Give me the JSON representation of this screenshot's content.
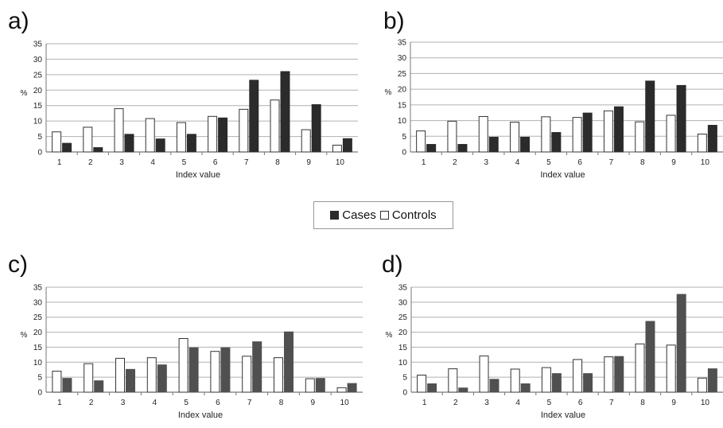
{
  "legend": {
    "cases_label": "Cases",
    "controls_label": "Controls"
  },
  "colors": {
    "cases_dark": "#2b2b2b",
    "cases_grey": "#505050",
    "controls": "#ffffff",
    "grid": "#b0b0b0"
  },
  "chart_data": [
    {
      "panel": "a)",
      "type": "bar",
      "categories": [
        "1",
        "2",
        "3",
        "4",
        "5",
        "6",
        "7",
        "8",
        "9",
        "10"
      ],
      "series": [
        {
          "name": "Controls",
          "values": [
            6.5,
            8.0,
            14.0,
            10.8,
            9.5,
            11.5,
            13.8,
            16.8,
            7.2,
            2.2
          ]
        },
        {
          "name": "Cases",
          "values": [
            2.8,
            1.4,
            5.7,
            4.2,
            5.7,
            11.0,
            23.2,
            26.0,
            15.3,
            4.3
          ]
        }
      ],
      "xlabel": "Index value",
      "ylabel": "%",
      "ylim": [
        0,
        35
      ],
      "yticks": [
        "0",
        "5",
        "10",
        "15",
        "20",
        "25",
        "30",
        "35"
      ],
      "grid": true
    },
    {
      "panel": "b)",
      "type": "bar",
      "categories": [
        "1",
        "2",
        "3",
        "4",
        "5",
        "6",
        "7",
        "8",
        "9",
        "10"
      ],
      "series": [
        {
          "name": "Controls",
          "values": [
            6.7,
            9.8,
            11.3,
            9.5,
            11.2,
            11.0,
            13.1,
            9.6,
            11.7,
            5.7
          ]
        },
        {
          "name": "Cases",
          "values": [
            2.4,
            2.4,
            4.7,
            4.7,
            6.2,
            12.4,
            14.4,
            22.6,
            21.2,
            8.5
          ]
        }
      ],
      "xlabel": "Index value",
      "ylabel": "%",
      "ylim": [
        0,
        35
      ],
      "yticks": [
        "0",
        "5",
        "10",
        "15",
        "20",
        "25",
        "30",
        "35"
      ],
      "grid": true
    },
    {
      "panel": "c)",
      "type": "bar",
      "categories": [
        "1",
        "2",
        "3",
        "4",
        "5",
        "6",
        "7",
        "8",
        "9",
        "10"
      ],
      "series": [
        {
          "name": "Controls",
          "values": [
            7.0,
            9.5,
            11.3,
            11.5,
            17.9,
            13.6,
            12.0,
            11.5,
            4.5,
            1.5
          ]
        },
        {
          "name": "Cases",
          "values": [
            4.6,
            3.8,
            7.6,
            9.1,
            14.8,
            14.8,
            16.8,
            20.1,
            4.6,
            2.9
          ]
        }
      ],
      "xlabel": "Index value",
      "ylabel": "%",
      "ylim": [
        0,
        35
      ],
      "yticks": [
        "0",
        "5",
        "10",
        "15",
        "20",
        "25",
        "30",
        "35"
      ],
      "grid": true
    },
    {
      "panel": "d)",
      "type": "bar",
      "categories": [
        "1",
        "2",
        "3",
        "4",
        "5",
        "6",
        "7",
        "8",
        "9",
        "10"
      ],
      "series": [
        {
          "name": "Controls",
          "values": [
            5.7,
            7.8,
            12.1,
            7.7,
            8.2,
            10.9,
            11.8,
            16.1,
            15.7,
            4.7
          ]
        },
        {
          "name": "Cases",
          "values": [
            2.8,
            1.4,
            4.3,
            2.8,
            6.2,
            6.2,
            11.9,
            23.6,
            32.6,
            7.8
          ]
        }
      ],
      "xlabel": "Index value",
      "ylabel": "%",
      "ylim": [
        0,
        35
      ],
      "yticks": [
        "0",
        "5",
        "10",
        "15",
        "20",
        "25",
        "30",
        "35"
      ],
      "grid": true
    }
  ]
}
